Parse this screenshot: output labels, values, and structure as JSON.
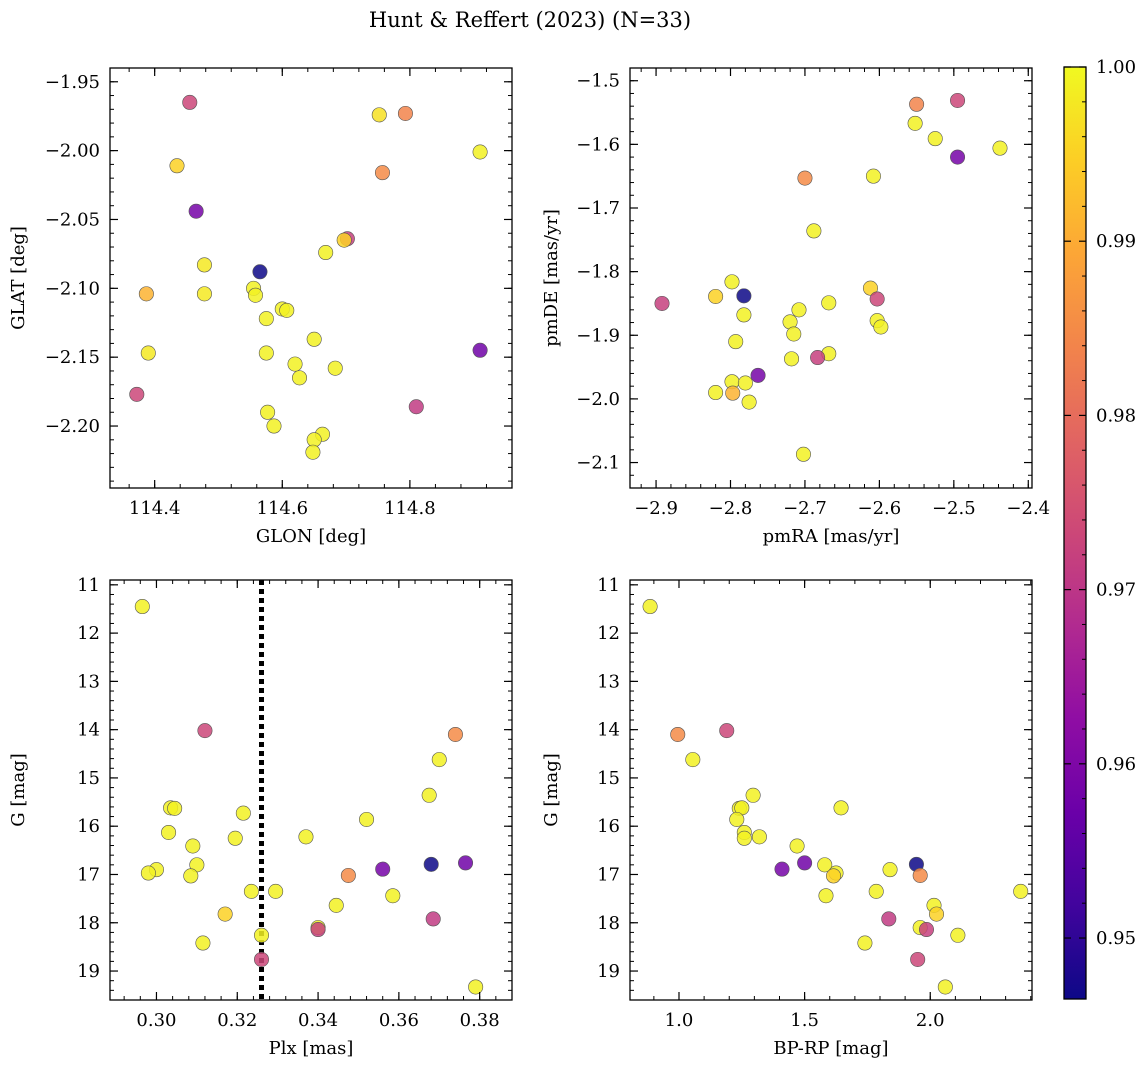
{
  "figure": {
    "title": "Hunt & Reffert (2023) (N=33)"
  },
  "colorbar": {
    "cmap": "plasma",
    "vmin": 0.9465,
    "vmax": 1.0,
    "ticks": [
      0.95,
      0.96,
      0.97,
      0.98,
      0.99,
      1.0
    ],
    "tick_labels": [
      "0.95",
      "0.96",
      "0.97",
      "0.98",
      "0.99",
      "1.00"
    ]
  },
  "chart_data": [
    {
      "type": "scatter",
      "title": "",
      "xlabel": "GLON [deg]",
      "ylabel": "GLAT [deg]",
      "xlim": [
        114.33,
        114.96
      ],
      "ylim": [
        -2.245,
        -1.94
      ],
      "invert_y": false,
      "x_ticks": [
        114.4,
        114.6,
        114.8
      ],
      "x_tick_labels": [
        "114.4",
        "114.6",
        "114.8"
      ],
      "y_ticks": [
        -1.95,
        -2.0,
        -2.05,
        -2.1,
        -2.15,
        -2.2
      ],
      "y_tick_labels": [
        "−1.95",
        "−2.00",
        "−2.05",
        "−2.10",
        "−2.15",
        "−2.20"
      ],
      "points": [
        {
          "x": 114.455,
          "y": -1.965,
          "c": 0.973
        },
        {
          "x": 114.435,
          "y": -2.011,
          "c": 0.995
        },
        {
          "x": 114.465,
          "y": -2.044,
          "c": 0.959
        },
        {
          "x": 114.478,
          "y": -2.083,
          "c": 0.998
        },
        {
          "x": 114.478,
          "y": -2.104,
          "c": 0.998
        },
        {
          "x": 114.387,
          "y": -2.104,
          "c": 0.991
        },
        {
          "x": 114.39,
          "y": -2.147,
          "c": 0.998
        },
        {
          "x": 114.372,
          "y": -2.177,
          "c": 0.973
        },
        {
          "x": 114.565,
          "y": -2.088,
          "c": 0.9465
        },
        {
          "x": 114.555,
          "y": -2.1,
          "c": 0.999
        },
        {
          "x": 114.558,
          "y": -2.105,
          "c": 0.999
        },
        {
          "x": 114.575,
          "y": -2.122,
          "c": 0.999
        },
        {
          "x": 114.6,
          "y": -2.115,
          "c": 0.999
        },
        {
          "x": 114.607,
          "y": -2.116,
          "c": 0.999
        },
        {
          "x": 114.575,
          "y": -2.147,
          "c": 0.999
        },
        {
          "x": 114.62,
          "y": -2.155,
          "c": 0.999
        },
        {
          "x": 114.627,
          "y": -2.165,
          "c": 0.999
        },
        {
          "x": 114.65,
          "y": -2.137,
          "c": 0.999
        },
        {
          "x": 114.683,
          "y": -2.158,
          "c": 0.999
        },
        {
          "x": 114.577,
          "y": -2.19,
          "c": 0.999
        },
        {
          "x": 114.587,
          "y": -2.2,
          "c": 0.999
        },
        {
          "x": 114.663,
          "y": -2.206,
          "c": 0.999
        },
        {
          "x": 114.65,
          "y": -2.21,
          "c": 0.999
        },
        {
          "x": 114.648,
          "y": -2.219,
          "c": 0.999
        },
        {
          "x": 114.668,
          "y": -2.074,
          "c": 0.999
        },
        {
          "x": 114.702,
          "y": -2.064,
          "c": 0.972
        },
        {
          "x": 114.697,
          "y": -2.065,
          "c": 0.995
        },
        {
          "x": 114.752,
          "y": -1.974,
          "c": 0.997
        },
        {
          "x": 114.793,
          "y": -1.973,
          "c": 0.984
        },
        {
          "x": 114.757,
          "y": -2.016,
          "c": 0.985
        },
        {
          "x": 114.91,
          "y": -2.001,
          "c": 0.999
        },
        {
          "x": 114.91,
          "y": -2.145,
          "c": 0.958
        },
        {
          "x": 114.81,
          "y": -2.186,
          "c": 0.971
        }
      ]
    },
    {
      "type": "scatter",
      "title": "",
      "xlabel": "pmRA [mas/yr]",
      "ylabel": "pmDE [mas/yr]",
      "xlim": [
        -2.935,
        -2.395
      ],
      "ylim": [
        -2.14,
        -1.48
      ],
      "invert_y": false,
      "x_ticks": [
        -2.9,
        -2.8,
        -2.7,
        -2.6,
        -2.5,
        -2.4
      ],
      "x_tick_labels": [
        "−2.9",
        "−2.8",
        "−2.7",
        "−2.6",
        "−2.5",
        "−2.4"
      ],
      "y_ticks": [
        -1.5,
        -1.6,
        -1.7,
        -1.8,
        -1.9,
        -2.0,
        -2.1
      ],
      "y_tick_labels": [
        "−1.5",
        "−1.6",
        "−1.7",
        "−1.8",
        "−1.9",
        "−2.0",
        "−2.1"
      ],
      "points": [
        {
          "x": -2.55,
          "y": -1.537,
          "c": 0.984
        },
        {
          "x": -2.495,
          "y": -1.531,
          "c": 0.973
        },
        {
          "x": -2.552,
          "y": -1.567,
          "c": 0.999
        },
        {
          "x": -2.525,
          "y": -1.591,
          "c": 0.999
        },
        {
          "x": -2.495,
          "y": -1.62,
          "c": 0.959
        },
        {
          "x": -2.438,
          "y": -1.606,
          "c": 0.999
        },
        {
          "x": -2.608,
          "y": -1.65,
          "c": 0.999
        },
        {
          "x": -2.7,
          "y": -1.653,
          "c": 0.985
        },
        {
          "x": -2.688,
          "y": -1.736,
          "c": 0.999
        },
        {
          "x": -2.892,
          "y": -1.85,
          "c": 0.972
        },
        {
          "x": -2.82,
          "y": -1.839,
          "c": 0.995
        },
        {
          "x": -2.798,
          "y": -1.816,
          "c": 0.999
        },
        {
          "x": -2.782,
          "y": -1.838,
          "c": 0.9465
        },
        {
          "x": -2.782,
          "y": -1.868,
          "c": 0.999
        },
        {
          "x": -2.612,
          "y": -1.826,
          "c": 0.995
        },
        {
          "x": -2.603,
          "y": -1.843,
          "c": 0.973
        },
        {
          "x": -2.668,
          "y": -1.849,
          "c": 0.999
        },
        {
          "x": -2.708,
          "y": -1.86,
          "c": 0.999
        },
        {
          "x": -2.72,
          "y": -1.879,
          "c": 0.999
        },
        {
          "x": -2.603,
          "y": -1.877,
          "c": 0.999
        },
        {
          "x": -2.598,
          "y": -1.887,
          "c": 0.999
        },
        {
          "x": -2.715,
          "y": -1.898,
          "c": 0.999
        },
        {
          "x": -2.793,
          "y": -1.91,
          "c": 0.999
        },
        {
          "x": -2.668,
          "y": -1.929,
          "c": 0.999
        },
        {
          "x": -2.718,
          "y": -1.937,
          "c": 0.999
        },
        {
          "x": -2.683,
          "y": -1.935,
          "c": 0.972
        },
        {
          "x": -2.763,
          "y": -1.963,
          "c": 0.959
        },
        {
          "x": -2.798,
          "y": -1.973,
          "c": 0.999
        },
        {
          "x": -2.78,
          "y": -1.975,
          "c": 0.999
        },
        {
          "x": -2.82,
          "y": -1.99,
          "c": 0.999
        },
        {
          "x": -2.797,
          "y": -1.991,
          "c": 0.991
        },
        {
          "x": -2.775,
          "y": -2.005,
          "c": 0.999
        },
        {
          "x": -2.702,
          "y": -2.087,
          "c": 0.999
        }
      ]
    },
    {
      "type": "scatter",
      "title": "",
      "xlabel": "Plx [mas]",
      "ylabel": "G [mag]",
      "xlim": [
        0.2885,
        0.388
      ],
      "ylim": [
        19.6,
        10.9
      ],
      "invert_y": true,
      "x_ticks": [
        0.3,
        0.32,
        0.34,
        0.36,
        0.38
      ],
      "x_tick_labels": [
        "0.30",
        "0.32",
        "0.34",
        "0.36",
        "0.38"
      ],
      "y_ticks": [
        11,
        12,
        13,
        14,
        15,
        16,
        17,
        18,
        19
      ],
      "y_tick_labels": [
        "11",
        "12",
        "13",
        "14",
        "15",
        "16",
        "17",
        "18",
        "19"
      ],
      "vline": {
        "x": 0.326,
        "style": "dotted"
      },
      "points": [
        {
          "x": 0.2965,
          "y": 11.45,
          "c": 0.999
        },
        {
          "x": 0.312,
          "y": 14.02,
          "c": 0.973
        },
        {
          "x": 0.3035,
          "y": 15.62,
          "c": 0.999
        },
        {
          "x": 0.3045,
          "y": 15.63,
          "c": 0.999
        },
        {
          "x": 0.3215,
          "y": 15.73,
          "c": 0.999
        },
        {
          "x": 0.303,
          "y": 16.13,
          "c": 0.999
        },
        {
          "x": 0.3195,
          "y": 16.25,
          "c": 0.999
        },
        {
          "x": 0.309,
          "y": 16.41,
          "c": 0.999
        },
        {
          "x": 0.31,
          "y": 16.8,
          "c": 0.999
        },
        {
          "x": 0.3,
          "y": 16.9,
          "c": 0.999
        },
        {
          "x": 0.298,
          "y": 16.97,
          "c": 0.999
        },
        {
          "x": 0.3085,
          "y": 17.03,
          "c": 0.999
        },
        {
          "x": 0.3235,
          "y": 17.35,
          "c": 0.999
        },
        {
          "x": 0.317,
          "y": 17.82,
          "c": 0.995
        },
        {
          "x": 0.3115,
          "y": 18.42,
          "c": 0.999
        },
        {
          "x": 0.326,
          "y": 18.26,
          "c": 0.999
        },
        {
          "x": 0.326,
          "y": 18.76,
          "c": 0.973
        },
        {
          "x": 0.3295,
          "y": 17.35,
          "c": 0.999
        },
        {
          "x": 0.337,
          "y": 16.22,
          "c": 0.999
        },
        {
          "x": 0.34,
          "y": 18.1,
          "c": 0.999
        },
        {
          "x": 0.34,
          "y": 18.14,
          "c": 0.972
        },
        {
          "x": 0.3445,
          "y": 17.64,
          "c": 0.999
        },
        {
          "x": 0.3475,
          "y": 17.02,
          "c": 0.985
        },
        {
          "x": 0.352,
          "y": 15.86,
          "c": 0.999
        },
        {
          "x": 0.356,
          "y": 16.89,
          "c": 0.959
        },
        {
          "x": 0.3585,
          "y": 17.44,
          "c": 0.999
        },
        {
          "x": 0.3675,
          "y": 15.36,
          "c": 0.999
        },
        {
          "x": 0.368,
          "y": 16.79,
          "c": 0.9465
        },
        {
          "x": 0.3685,
          "y": 17.92,
          "c": 0.971
        },
        {
          "x": 0.37,
          "y": 14.62,
          "c": 0.999
        },
        {
          "x": 0.374,
          "y": 14.1,
          "c": 0.985
        },
        {
          "x": 0.3765,
          "y": 16.76,
          "c": 0.958
        },
        {
          "x": 0.379,
          "y": 19.33,
          "c": 0.999
        }
      ]
    },
    {
      "type": "scatter",
      "title": "",
      "xlabel": "BP-RP [mag]",
      "ylabel": "G [mag]",
      "xlim": [
        0.805,
        2.405
      ],
      "ylim": [
        19.6,
        10.9
      ],
      "invert_y": true,
      "x_ticks": [
        1.0,
        1.5,
        2.0
      ],
      "x_tick_labels": [
        "1.0",
        "1.5",
        "2.0"
      ],
      "y_ticks": [
        11,
        12,
        13,
        14,
        15,
        16,
        17,
        18,
        19
      ],
      "y_tick_labels": [
        "11",
        "12",
        "13",
        "14",
        "15",
        "16",
        "17",
        "18",
        "19"
      ],
      "points": [
        {
          "x": 0.885,
          "y": 11.45,
          "c": 0.999
        },
        {
          "x": 0.995,
          "y": 14.1,
          "c": 0.985
        },
        {
          "x": 1.19,
          "y": 14.02,
          "c": 0.973
        },
        {
          "x": 1.055,
          "y": 14.62,
          "c": 0.999
        },
        {
          "x": 1.295,
          "y": 15.36,
          "c": 0.999
        },
        {
          "x": 1.24,
          "y": 15.63,
          "c": 0.999
        },
        {
          "x": 1.25,
          "y": 15.62,
          "c": 0.999
        },
        {
          "x": 1.645,
          "y": 15.62,
          "c": 0.999
        },
        {
          "x": 1.23,
          "y": 15.86,
          "c": 0.999
        },
        {
          "x": 1.26,
          "y": 16.13,
          "c": 0.999
        },
        {
          "x": 1.32,
          "y": 16.22,
          "c": 0.999
        },
        {
          "x": 1.26,
          "y": 16.25,
          "c": 0.999
        },
        {
          "x": 1.47,
          "y": 16.41,
          "c": 0.999
        },
        {
          "x": 1.5,
          "y": 16.76,
          "c": 0.958
        },
        {
          "x": 1.58,
          "y": 16.8,
          "c": 0.999
        },
        {
          "x": 1.41,
          "y": 16.89,
          "c": 0.959
        },
        {
          "x": 1.84,
          "y": 16.9,
          "c": 0.999
        },
        {
          "x": 1.945,
          "y": 16.79,
          "c": 0.9465
        },
        {
          "x": 1.625,
          "y": 16.97,
          "c": 0.999
        },
        {
          "x": 1.615,
          "y": 17.03,
          "c": 0.995
        },
        {
          "x": 1.96,
          "y": 17.02,
          "c": 0.985
        },
        {
          "x": 1.785,
          "y": 17.35,
          "c": 0.999
        },
        {
          "x": 2.36,
          "y": 17.35,
          "c": 0.999
        },
        {
          "x": 1.585,
          "y": 17.44,
          "c": 0.999
        },
        {
          "x": 2.015,
          "y": 17.64,
          "c": 0.999
        },
        {
          "x": 2.025,
          "y": 17.82,
          "c": 0.995
        },
        {
          "x": 1.835,
          "y": 17.92,
          "c": 0.971
        },
        {
          "x": 1.96,
          "y": 18.1,
          "c": 0.999
        },
        {
          "x": 1.985,
          "y": 18.14,
          "c": 0.972
        },
        {
          "x": 2.11,
          "y": 18.26,
          "c": 0.999
        },
        {
          "x": 1.74,
          "y": 18.42,
          "c": 0.999
        },
        {
          "x": 1.95,
          "y": 18.76,
          "c": 0.973
        },
        {
          "x": 2.06,
          "y": 19.33,
          "c": 0.999
        }
      ]
    }
  ]
}
